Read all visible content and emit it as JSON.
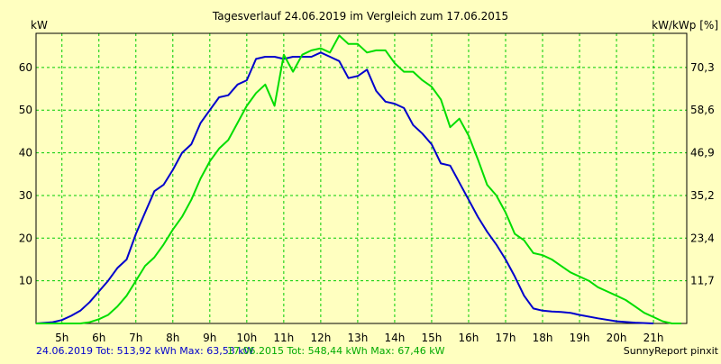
{
  "chart_data": {
    "type": "line",
    "title": "Tagesverlauf 24.06.2019 im Vergleich zum 17.06.2015",
    "ylabel_left": "kW",
    "ylabel_right": "kW/kWp [%]",
    "x_ticks": [
      "5h",
      "6h",
      "7h",
      "8h",
      "9h",
      "10h",
      "11h",
      "12h",
      "13h",
      "14h",
      "15h",
      "16h",
      "17h",
      "18h",
      "19h",
      "20h",
      "21h"
    ],
    "xlim": [
      4.3,
      21.9
    ],
    "ylim": [
      0,
      68
    ],
    "y_ticks_left": [
      10,
      20,
      30,
      40,
      50,
      60
    ],
    "y_ticks_right": [
      "11,7",
      "23,4",
      "35,2",
      "46,9",
      "58,6",
      "70,3"
    ],
    "grid": true,
    "series": [
      {
        "color": "#0000CC",
        "x": [
          4.3,
          4.75,
          5.0,
          5.25,
          5.5,
          5.75,
          6.0,
          6.25,
          6.5,
          6.75,
          7.0,
          7.25,
          7.5,
          7.75,
          8.0,
          8.25,
          8.5,
          8.75,
          9.0,
          9.25,
          9.5,
          9.75,
          10.0,
          10.25,
          10.5,
          10.75,
          11.0,
          11.25,
          11.5,
          11.75,
          12.0,
          12.25,
          12.5,
          12.75,
          13.0,
          13.25,
          13.5,
          13.75,
          14.0,
          14.25,
          14.5,
          14.75,
          15.0,
          15.25,
          15.5,
          15.75,
          16.0,
          16.25,
          16.5,
          16.75,
          17.0,
          17.25,
          17.5,
          17.75,
          18.0,
          18.25,
          18.5,
          18.75,
          19.0,
          19.5,
          20.0,
          20.5,
          21.0
        ],
        "y": [
          0,
          0.3,
          0.8,
          1.8,
          3,
          5,
          7.5,
          10,
          13,
          15,
          21,
          26,
          31,
          32.5,
          36,
          40,
          42,
          47,
          50,
          53,
          53.5,
          56,
          57,
          62,
          62.5,
          62.5,
          62,
          62.5,
          62.5,
          62.5,
          63.5,
          62.5,
          61.5,
          57.5,
          58,
          59.5,
          54.5,
          52,
          51.5,
          50.5,
          46.5,
          44.5,
          42,
          37.5,
          37,
          33,
          29,
          25,
          21.5,
          18.5,
          15,
          11,
          6.5,
          3.5,
          3,
          2.8,
          2.7,
          2.5,
          2,
          1.2,
          0.5,
          0.2,
          0
        ]
      },
      {
        "color": "#00DD00",
        "x": [
          4.3,
          5.5,
          5.75,
          6.0,
          6.25,
          6.5,
          6.75,
          7.0,
          7.25,
          7.5,
          7.75,
          8.0,
          8.25,
          8.5,
          8.75,
          9.0,
          9.25,
          9.5,
          9.75,
          10.0,
          10.25,
          10.5,
          10.75,
          11.0,
          11.25,
          11.5,
          11.75,
          12.0,
          12.25,
          12.5,
          12.75,
          13.0,
          13.25,
          13.5,
          13.75,
          14.0,
          14.25,
          14.5,
          14.75,
          15.0,
          15.25,
          15.5,
          15.75,
          16.0,
          16.25,
          16.5,
          16.75,
          17.0,
          17.25,
          17.5,
          17.75,
          18.0,
          18.25,
          18.5,
          18.75,
          19.0,
          19.25,
          19.5,
          19.75,
          20.0,
          20.25,
          20.5,
          20.75,
          21.0,
          21.25,
          21.5,
          21.75
        ],
        "y": [
          0,
          0,
          0.3,
          1,
          2,
          4,
          6.5,
          10,
          13.5,
          15.5,
          18.5,
          22,
          25,
          29,
          34,
          38,
          41,
          43,
          47,
          51,
          54,
          56,
          51,
          63,
          59,
          63,
          64,
          64.5,
          63.5,
          67.5,
          65.5,
          65.5,
          63.5,
          64,
          64,
          61,
          59,
          59,
          57,
          55.5,
          52.5,
          46,
          48,
          44,
          38.5,
          32.5,
          30,
          26,
          21,
          19.5,
          16.5,
          16,
          15,
          13.5,
          12,
          11,
          10,
          8.5,
          7.5,
          6.5,
          5.5,
          4,
          2.5,
          1.5,
          0.5,
          0,
          0
        ]
      }
    ]
  },
  "footer": {
    "legend_2019": "24.06.2019 Tot: 513,92 kWh Max: 63,53 kW",
    "legend_2015": "17.06.2015 Tot: 548,44 kWh Max: 67,46 kW",
    "credit": "SunnyReport pinxit"
  },
  "colors": {
    "background": "#FFFFC0",
    "grid": "#00CC00",
    "series_2019": "#0000CC",
    "series_2015": "#00DD00"
  }
}
